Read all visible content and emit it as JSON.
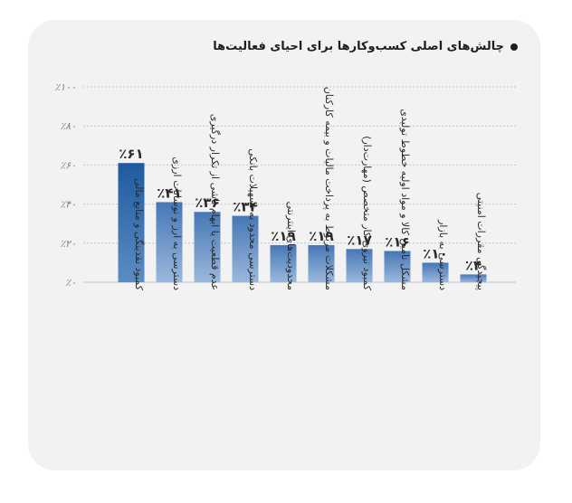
{
  "chart_data": {
    "type": "bar",
    "title": "چالش‌های اصلی کسب‌وکارها برای احیای فعالیت‌ها",
    "categories": [
      "کمبود نقدینگی و منابع مالی",
      "دسترسی به ارز و نوسانات ارزی",
      "عدم قطعیت یا ابهام ناشی از تکرار درگیری",
      "دسترسی محدود به تسهیلات بانکی",
      "محدودیت‌های اینترنتی",
      "مشکلات مربوط به پرداخت مالیات و بیمه کارکنان",
      "کمبود نیروی کار متخصص (مهارت‌دار)",
      "مشکل تامین کالا و مواد اولیه خطوط تولیدی",
      "دسترسی به بازار",
      "پیچیدگی مقررات امنیتی"
    ],
    "values": [
      61,
      41,
      36,
      34,
      19,
      19,
      17,
      16,
      10,
      4
    ],
    "value_labels": [
      "٪۶۱",
      "٪۴۱",
      "٪۳۶",
      "٪۳۴",
      "٪۱۹",
      "٪۱۹",
      "٪۱۷",
      "٪۱۶",
      "٪۱۰",
      "٪۴"
    ],
    "yticks": [
      0,
      20,
      40,
      60,
      80,
      100
    ],
    "ytick_labels": [
      "٪۰",
      "٪۲۰",
      "٪۴۰",
      "٪۶۰",
      "٪۸۰",
      "٪۱۰۰"
    ],
    "ylim": [
      0,
      100
    ],
    "grid": true,
    "colors": {
      "bar_top_first": "#1e5aa0",
      "bar_bottom_first": "#5d8cc3",
      "bar_top": "#4677b6",
      "bar_bottom": "#9ab8dc",
      "grid": "#c4c4c4"
    }
  }
}
